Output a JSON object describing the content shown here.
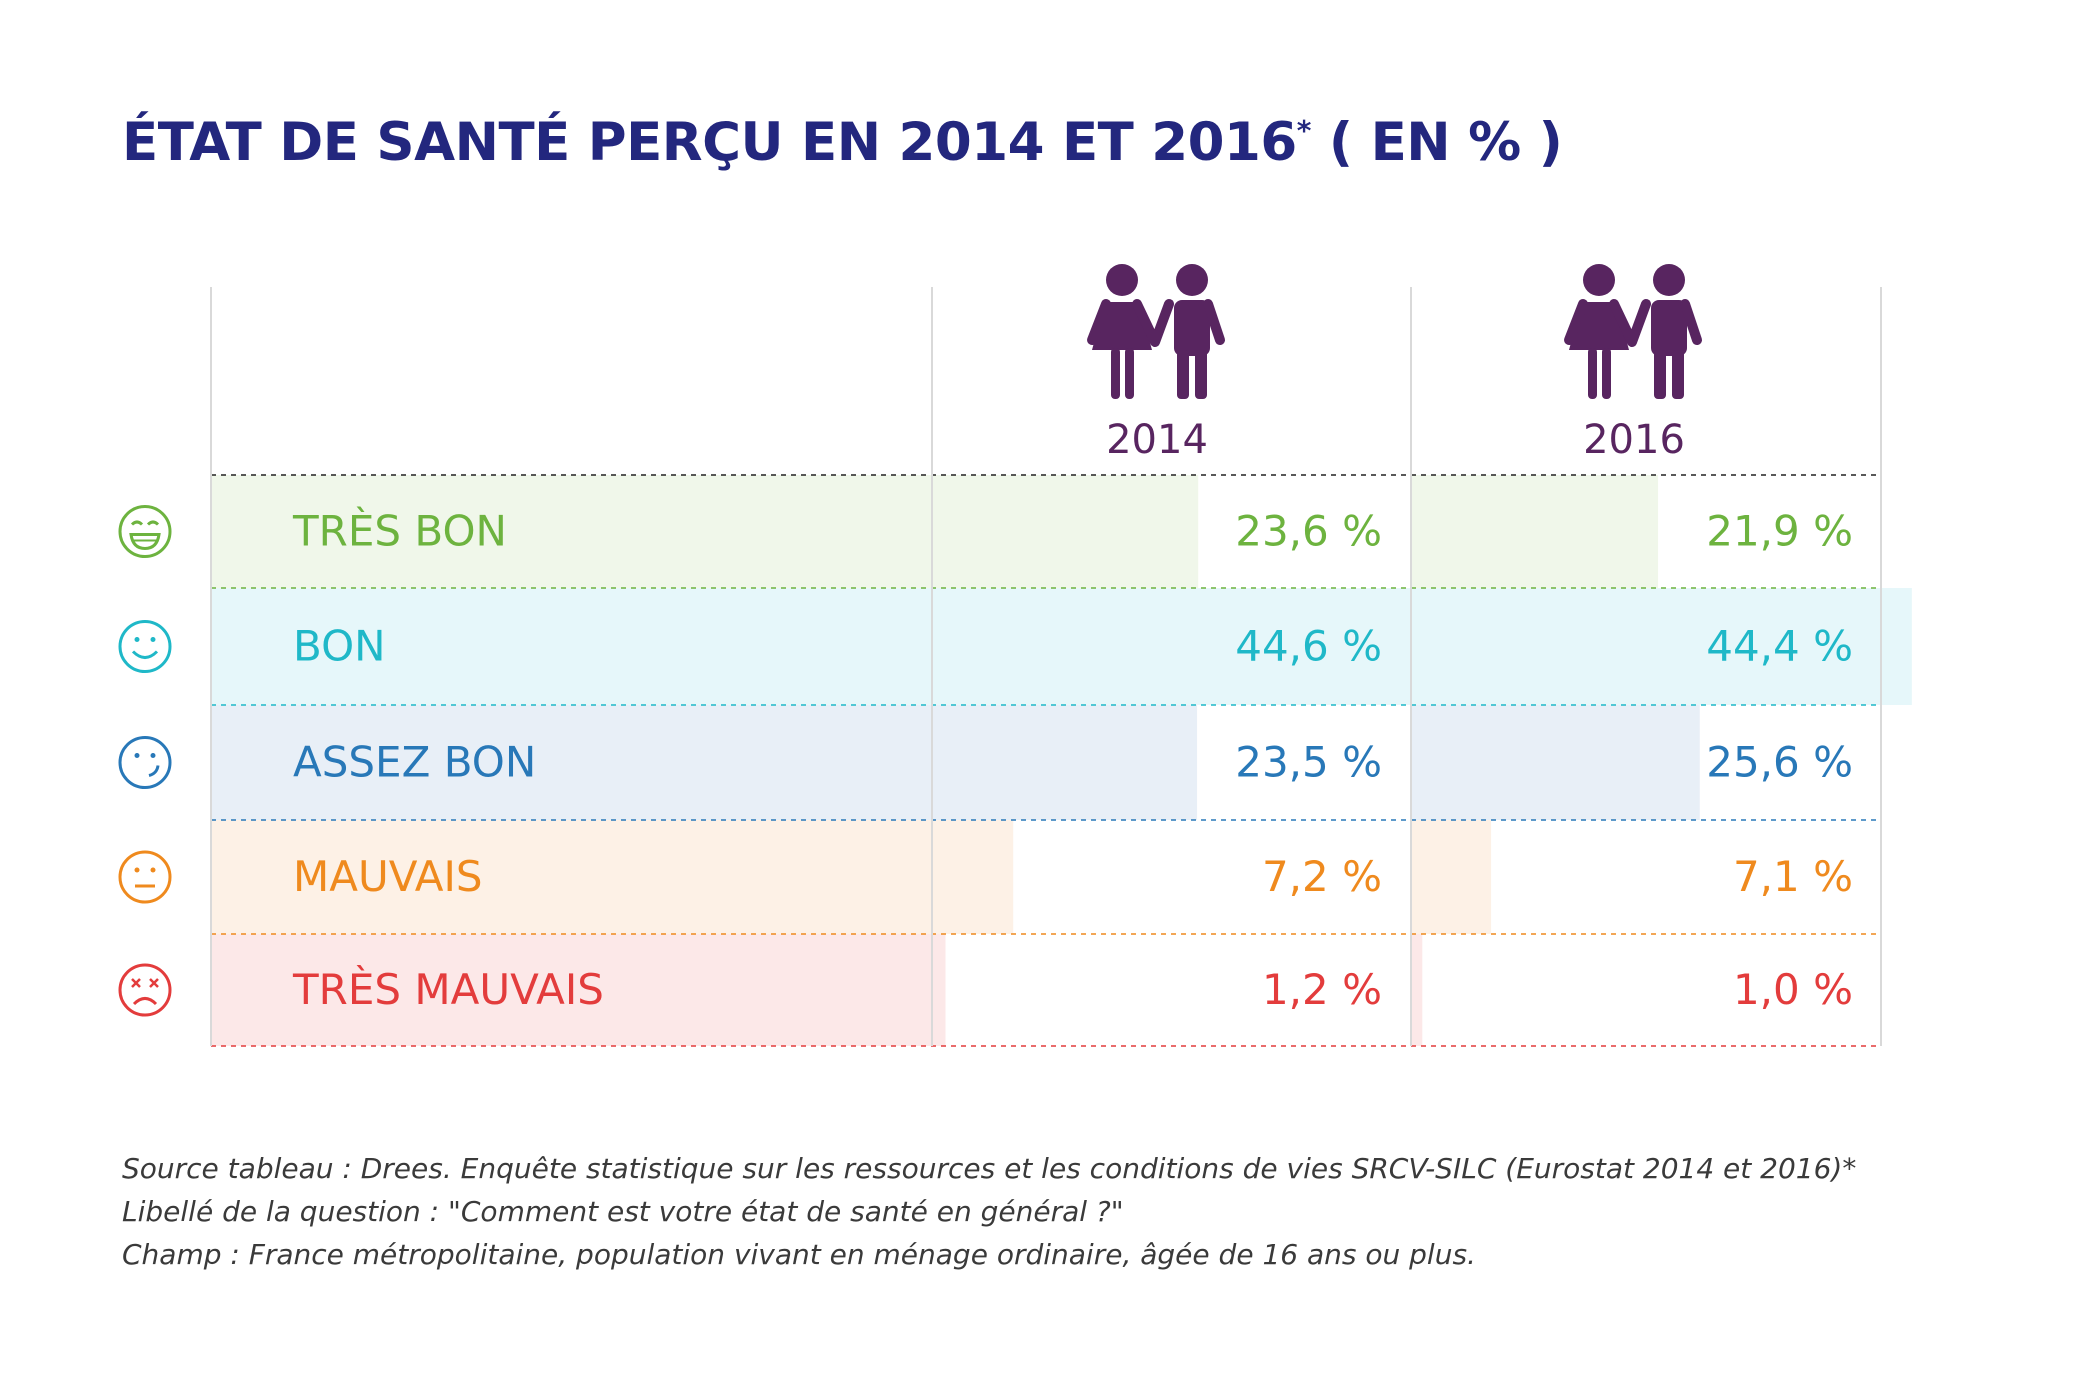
{
  "title": {
    "text": "ÉTAT DE SANTÉ PERÇU EN 2014 ET 2016",
    "marker": "*",
    "suffix": " ( EN % )",
    "color": "#23277e"
  },
  "chart_data": {
    "type": "table",
    "columns": [
      {
        "label": "2014",
        "icon": "couple-icon"
      },
      {
        "label": "2016",
        "icon": "couple-icon"
      }
    ],
    "rows": [
      {
        "label": "TRÈS BON",
        "icon": "grinning-face-icon",
        "color": "#6db33f",
        "bg": "#f0f7ea",
        "values": [
          23.6,
          21.9
        ],
        "display": [
          "23,6 %",
          "21,9 %"
        ]
      },
      {
        "label": "BON",
        "icon": "smiling-face-icon",
        "color": "#1fb8c8",
        "bg": "#e6f7fa",
        "values": [
          44.6,
          44.4
        ],
        "display": [
          "44,6 %",
          "44,4 %"
        ]
      },
      {
        "label": "ASSEZ BON",
        "icon": "wink-face-icon",
        "color": "#2878b8",
        "bg": "#e8eff7",
        "values": [
          23.5,
          25.6
        ],
        "display": [
          "23,5 %",
          "25,6 %"
        ]
      },
      {
        "label": "MAUVAIS",
        "icon": "neutral-face-icon",
        "color": "#ef8a1e",
        "bg": "#fdf1e6",
        "values": [
          7.2,
          7.1
        ],
        "display": [
          "7,2 %",
          "7,1 %"
        ]
      },
      {
        "label": "TRÈS MAUVAIS",
        "icon": "dizzy-face-icon",
        "color": "#e33c3c",
        "bg": "#fce8e8",
        "values": [
          1.2,
          1.0
        ],
        "display": [
          "1,2 %",
          "1,0 %"
        ]
      }
    ],
    "icon_color": "#582560",
    "grid_color": "#d9d9d9"
  },
  "footnotes": [
    "Source tableau : Drees. Enquête statistique sur les ressources et les conditions de vies SRCV-SILC (Eurostat 2014 et 2016)*",
    "Libellé de la question : \"Comment est votre état de santé en général ?\"",
    "Champ : France métropolitaine, population vivant en ménage ordinaire, âgée de 16 ans ou plus."
  ]
}
